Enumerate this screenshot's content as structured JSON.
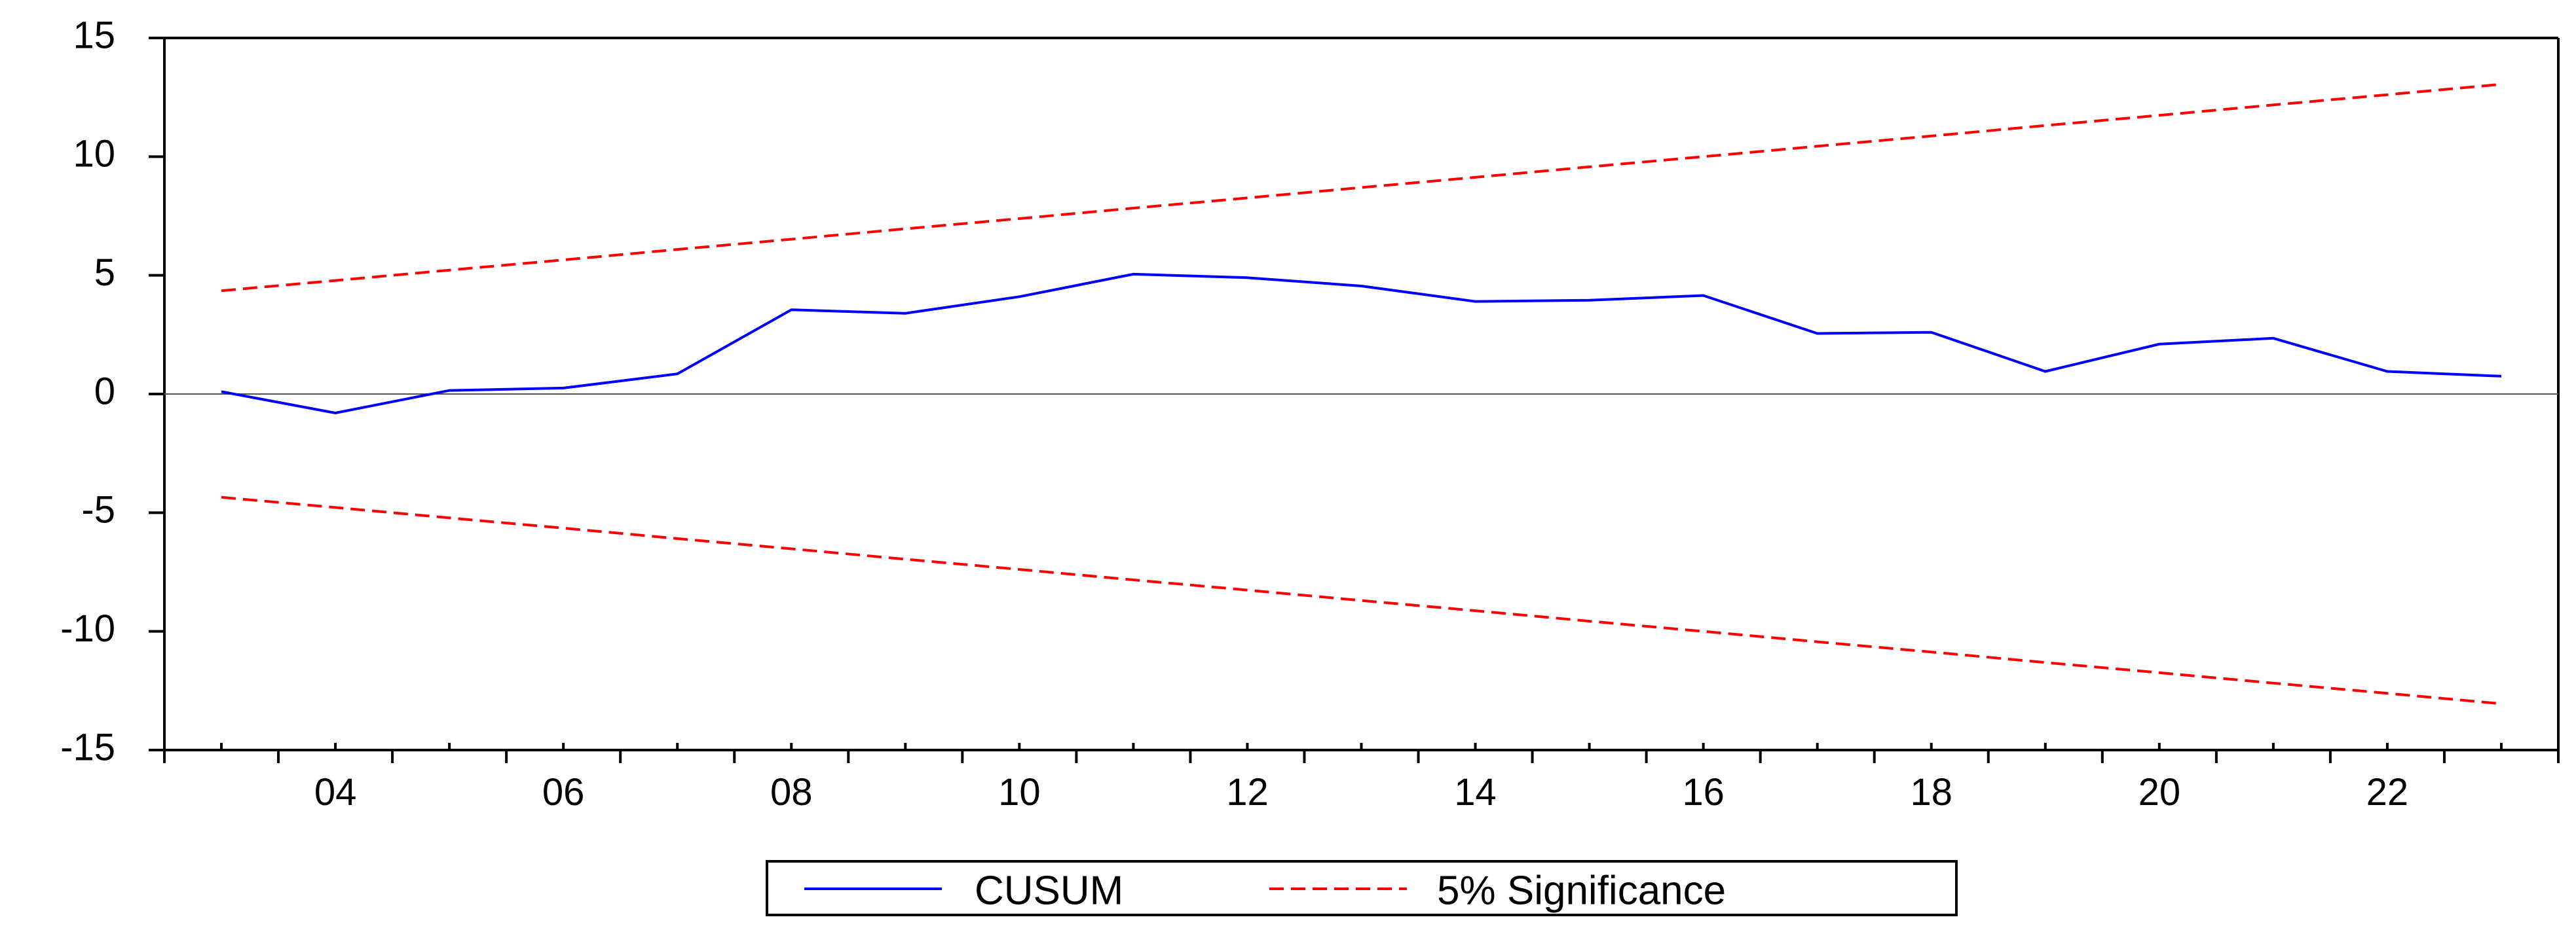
{
  "chart_data": {
    "type": "line",
    "title": "",
    "xlabel": "",
    "ylabel": "",
    "x": [
      2003,
      2004,
      2005,
      2006,
      2007,
      2008,
      2009,
      2010,
      2011,
      2012,
      2013,
      2014,
      2015,
      2016,
      2017,
      2018,
      2019,
      2020,
      2021,
      2022,
      2023
    ],
    "xlim": [
      2002.5,
      2023.5
    ],
    "ylim": [
      -15,
      15
    ],
    "x_ticks": [
      {
        "value": 2004,
        "label": "04"
      },
      {
        "value": 2006,
        "label": "06"
      },
      {
        "value": 2008,
        "label": "08"
      },
      {
        "value": 2010,
        "label": "10"
      },
      {
        "value": 2012,
        "label": "12"
      },
      {
        "value": 2014,
        "label": "14"
      },
      {
        "value": 2016,
        "label": "16"
      },
      {
        "value": 2018,
        "label": "18"
      },
      {
        "value": 2020,
        "label": "20"
      },
      {
        "value": 2022,
        "label": "22"
      }
    ],
    "y_ticks": [
      {
        "value": 15,
        "label": "15"
      },
      {
        "value": 10,
        "label": "10"
      },
      {
        "value": 5,
        "label": "5"
      },
      {
        "value": 0,
        "label": "0"
      },
      {
        "value": -5,
        "label": "-5"
      },
      {
        "value": -10,
        "label": "-10"
      },
      {
        "value": -15,
        "label": "-15"
      }
    ],
    "zero_line": true,
    "grid": false,
    "legend_position": "bottom-center",
    "series": [
      {
        "name": "CUSUM",
        "color": "#0000ff",
        "style": "solid",
        "values": [
          0.1,
          -0.8,
          0.15,
          0.25,
          0.85,
          3.55,
          3.4,
          4.1,
          5.05,
          4.9,
          4.55,
          3.9,
          3.95,
          4.15,
          2.55,
          2.6,
          0.95,
          2.1,
          2.35,
          0.95,
          0.75
        ]
      },
      {
        "name": "5% Significance",
        "color": "#ff0000",
        "style": "dashed",
        "values": [
          4.35,
          4.78,
          5.22,
          5.65,
          6.09,
          6.52,
          6.96,
          7.39,
          7.83,
          8.26,
          8.7,
          9.13,
          9.57,
          10.0,
          10.44,
          10.87,
          11.31,
          11.74,
          12.18,
          12.61,
          13.05
        ]
      },
      {
        "name": "",
        "color": "#ff0000",
        "style": "dashed",
        "values": [
          -4.35,
          -4.78,
          -5.22,
          -5.65,
          -6.09,
          -6.52,
          -6.96,
          -7.39,
          -7.83,
          -8.26,
          -8.7,
          -9.13,
          -9.57,
          -10.0,
          -10.44,
          -10.87,
          -11.31,
          -11.74,
          -12.18,
          -12.61,
          -13.05
        ]
      }
    ],
    "legend": [
      {
        "label": "CUSUM",
        "color": "#0000ff",
        "style": "solid"
      },
      {
        "label": "5% Significance",
        "color": "#ff0000",
        "style": "dashed"
      }
    ]
  }
}
